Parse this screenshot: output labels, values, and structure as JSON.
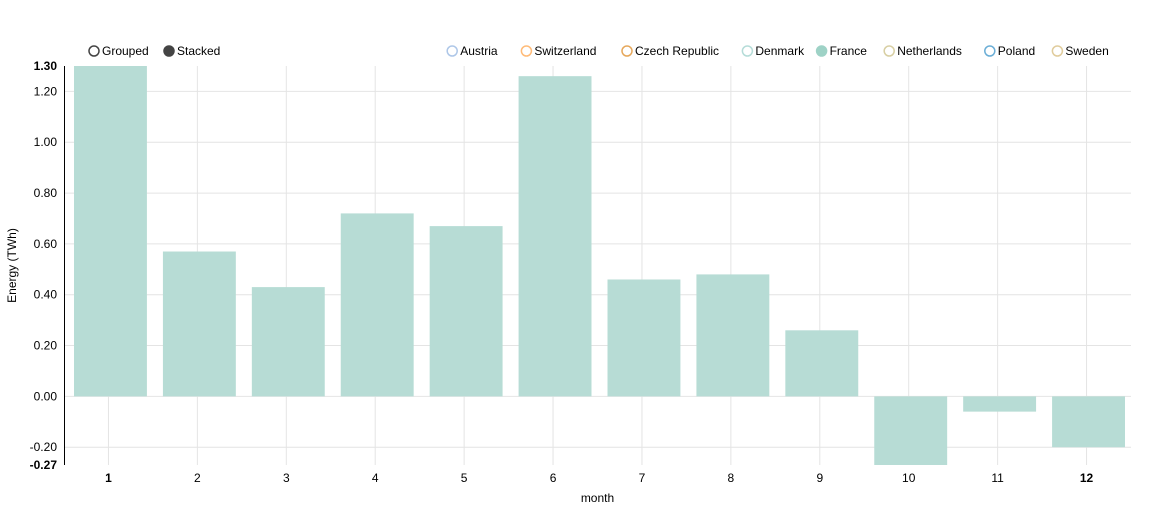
{
  "controls": {
    "modes": [
      {
        "label": "Grouped",
        "selected": false
      },
      {
        "label": "Stacked",
        "selected": true
      }
    ]
  },
  "legend": [
    {
      "name": "Austria",
      "color": "#aec7e8",
      "active": false
    },
    {
      "name": "Switzerland",
      "color": "#ffbb78",
      "active": false
    },
    {
      "name": "Czech Republic",
      "color": "#e6a85c",
      "active": false
    },
    {
      "name": "Denmark",
      "color": "#b5dcd8",
      "active": false
    },
    {
      "name": "France",
      "color": "#9ed2c6",
      "active": true
    },
    {
      "name": "Netherlands",
      "color": "#d8cfa3",
      "active": false
    },
    {
      "name": "Poland",
      "color": "#6baed6",
      "active": false
    },
    {
      "name": "Sweden",
      "color": "#e0cc9c",
      "active": false
    }
  ],
  "chart_data": {
    "type": "bar",
    "title": "",
    "xlabel": "month",
    "ylabel": "Energy (TWh)",
    "categories": [
      "1",
      "2",
      "3",
      "4",
      "5",
      "6",
      "7",
      "8",
      "9",
      "10",
      "11",
      "12"
    ],
    "bold_categories": [
      "1",
      "12"
    ],
    "series": [
      {
        "name": "France",
        "color": "#b7dcd5",
        "values": [
          1.3,
          0.57,
          0.43,
          0.72,
          0.67,
          1.26,
          0.46,
          0.48,
          0.26,
          -0.27,
          -0.06,
          -0.2
        ]
      }
    ],
    "ylim": [
      -0.27,
      1.3
    ],
    "yticks": [
      -0.2,
      0.0,
      0.2,
      0.4,
      0.6,
      0.8,
      1.0,
      1.2
    ],
    "ytick_labels": [
      "-0.20",
      "0.00",
      "0.20",
      "0.40",
      "0.60",
      "0.80",
      "1.00",
      "1.20"
    ],
    "yextent_labels": [
      "-0.27",
      "1.30"
    ],
    "grid": true,
    "legend_position": "top-right"
  }
}
